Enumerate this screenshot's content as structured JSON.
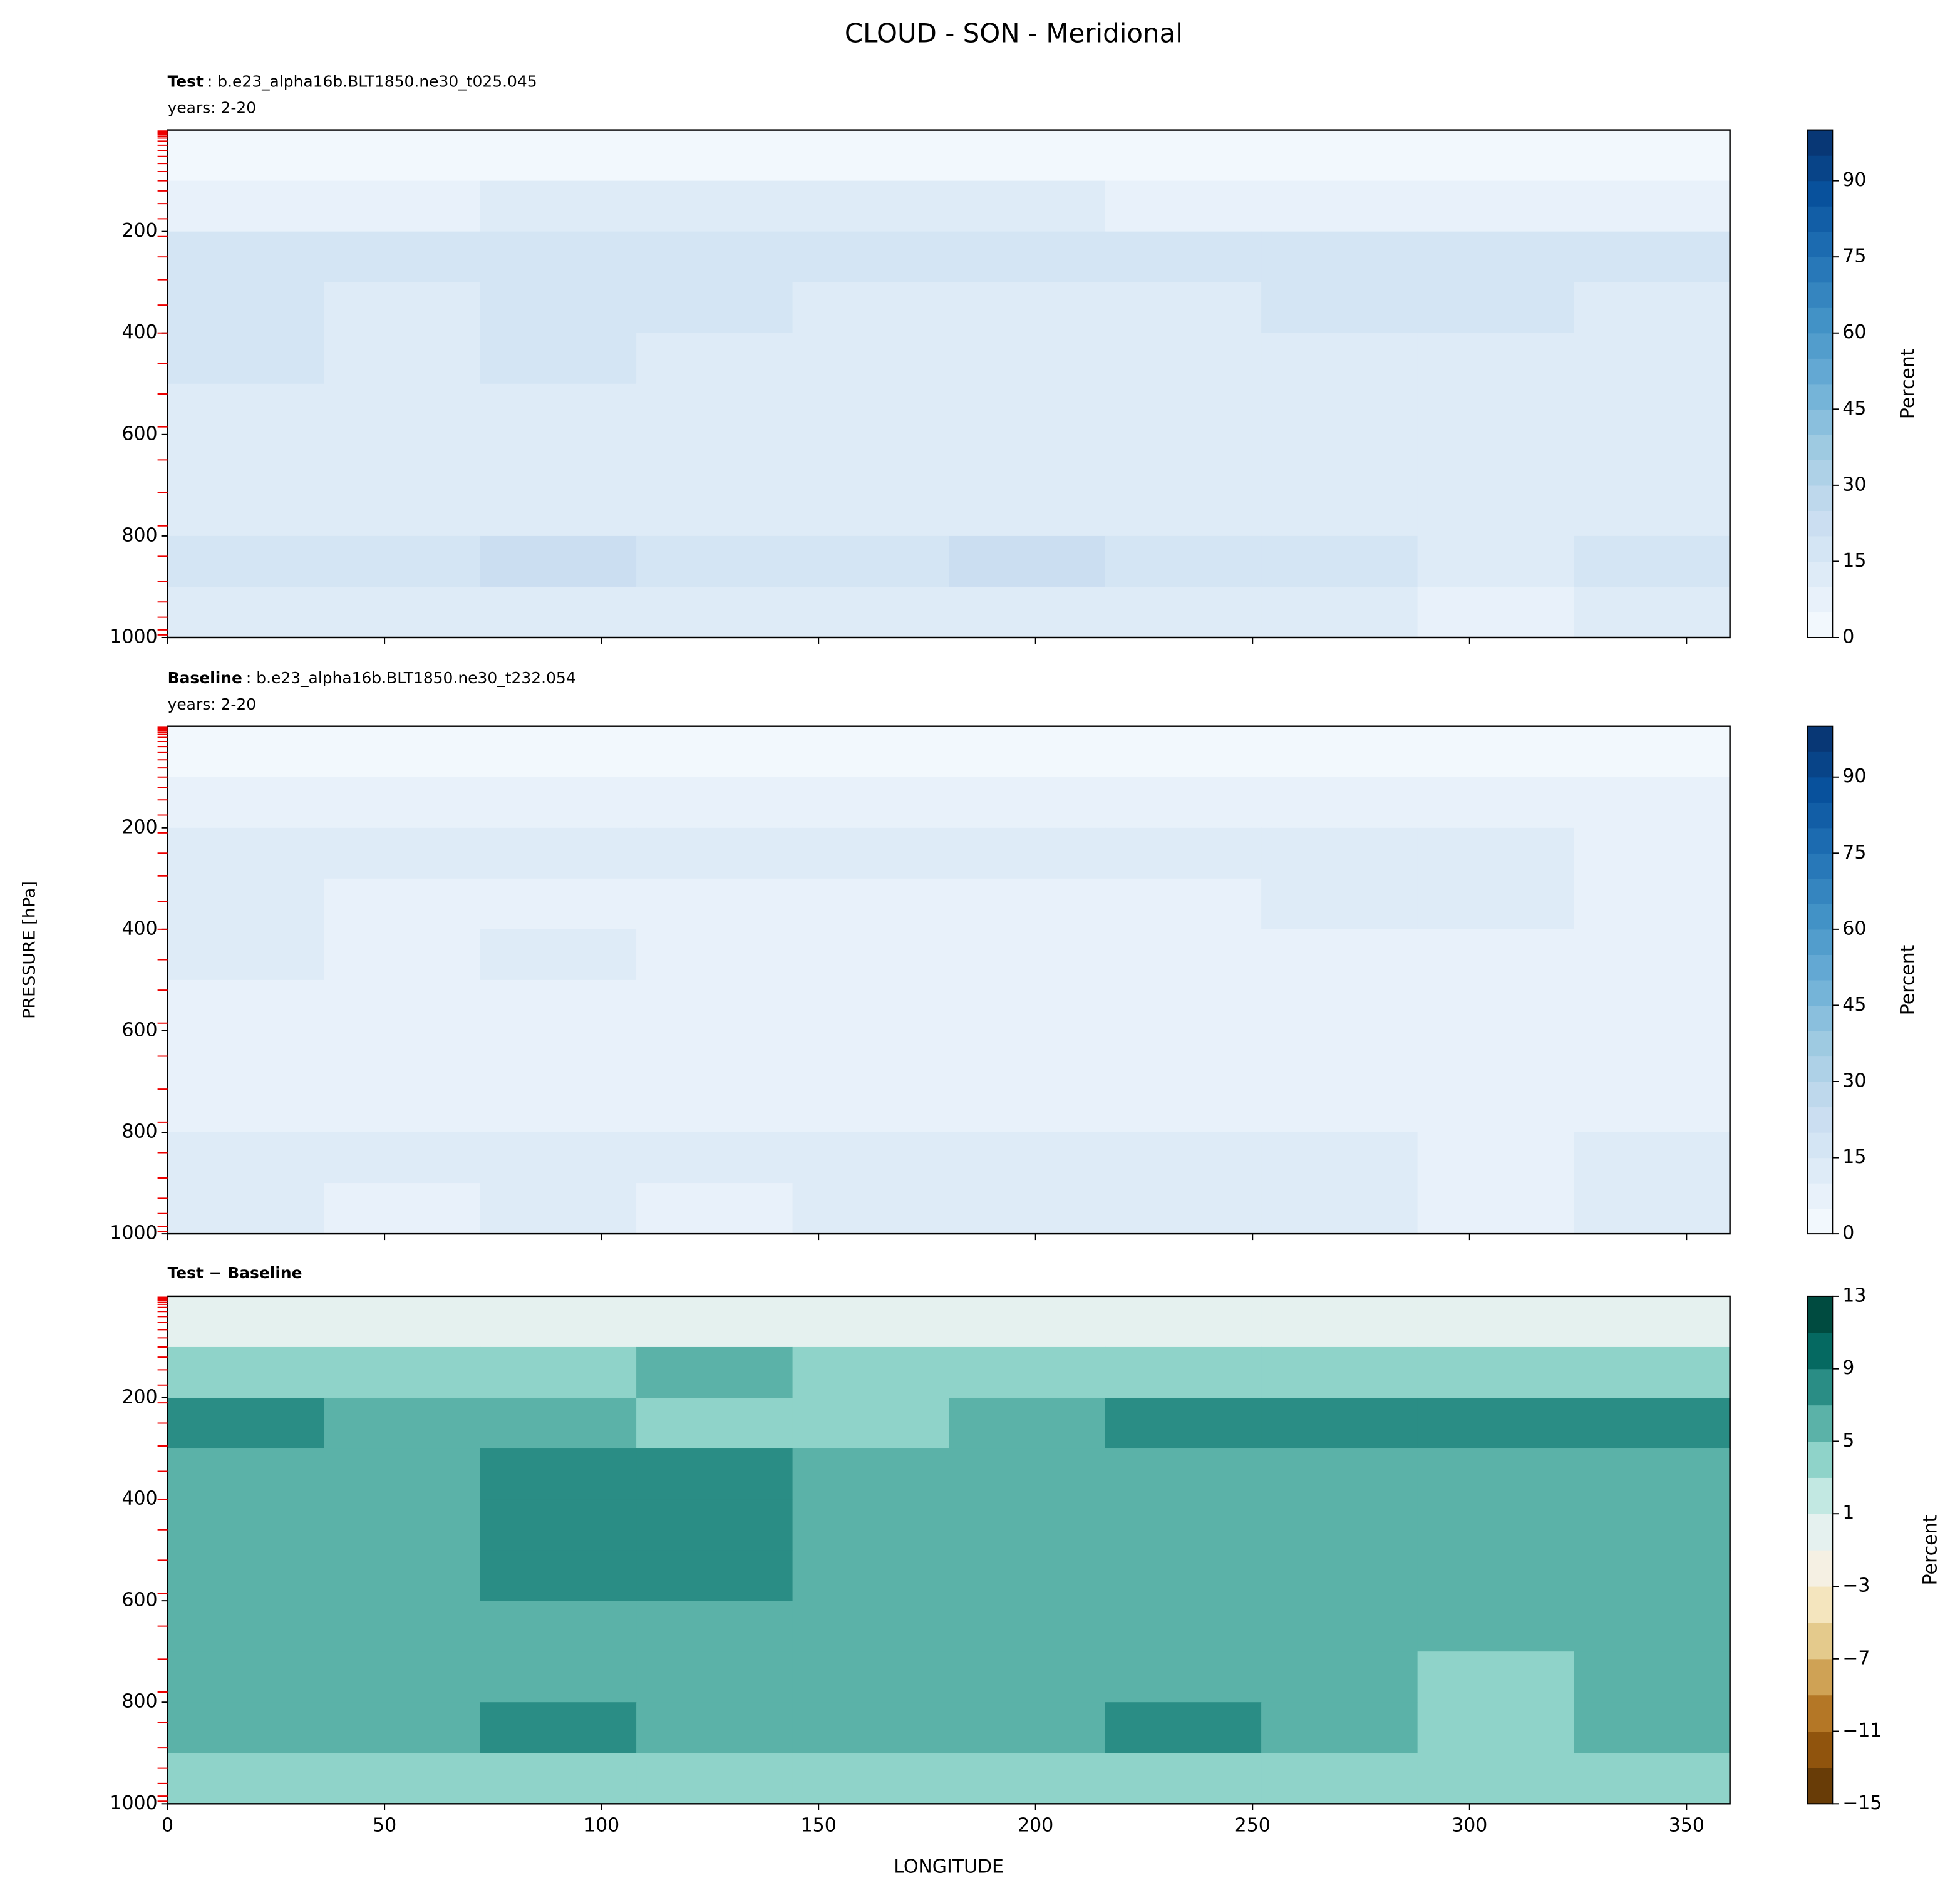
{
  "title": "CLOUD - SON - Meridional",
  "ylabel": "PRESSURE [hPa]",
  "chart_data": [
    {
      "type": "contour",
      "name": "Test",
      "case": ": b.e23_alpha16b.BLT1850.ne30_t025.045",
      "years": "years: 2-20",
      "x": [
        18,
        54,
        90,
        126,
        162,
        198,
        234,
        270,
        306,
        342
      ],
      "y": [
        50,
        150,
        250,
        350,
        450,
        550,
        650,
        750,
        850,
        950
      ],
      "z": [
        [
          2,
          2,
          2,
          2,
          2,
          2,
          2,
          2,
          2,
          2
        ],
        [
          8,
          9,
          10,
          10,
          10,
          10,
          9,
          9,
          8,
          8
        ],
        [
          17,
          16,
          17,
          15,
          17,
          15,
          17,
          18,
          17,
          16
        ],
        [
          15,
          13,
          16,
          15,
          14,
          14,
          14,
          15,
          15,
          14
        ],
        [
          15,
          12,
          17,
          14,
          14,
          14,
          13,
          14,
          13,
          12
        ],
        [
          14,
          12,
          13,
          14,
          14,
          13,
          12,
          13,
          11,
          11
        ],
        [
          11,
          13,
          12,
          11,
          10,
          10,
          10,
          11,
          10,
          10
        ],
        [
          12,
          13,
          14,
          13,
          13,
          13,
          14,
          13,
          11,
          13
        ],
        [
          18,
          17,
          20,
          18,
          19,
          20,
          19,
          18,
          12,
          18
        ],
        [
          14,
          12,
          14,
          12,
          13,
          13,
          14,
          13,
          9,
          14
        ]
      ],
      "xlim": [
        0,
        360
      ],
      "ylim": [
        1000,
        0
      ],
      "xticks": [
        0,
        50,
        100,
        150,
        200,
        250,
        300,
        350
      ],
      "yticks": [
        200,
        400,
        600,
        800,
        1000
      ],
      "levels": [
        0,
        5,
        10,
        15,
        20,
        25,
        30,
        35,
        40,
        45,
        50,
        55,
        60,
        65,
        70,
        75,
        80,
        85,
        90,
        95,
        100
      ],
      "colormap": [
        "#f7fbff",
        "#deebf7",
        "#c6dbef",
        "#9ecae1",
        "#6baed6",
        "#4292c6",
        "#2171b5",
        "#08519c",
        "#08306b"
      ],
      "colorbar_ticks": [
        0,
        15,
        30,
        45,
        60,
        75,
        90
      ],
      "colorbar_label": "Percent",
      "level_marks": [
        2,
        4,
        6,
        8,
        12,
        16,
        22,
        30,
        40,
        52,
        66,
        82,
        100,
        120,
        145,
        175,
        210,
        250,
        295,
        345,
        400,
        460,
        520,
        585,
        650,
        715,
        780,
        840,
        890,
        930,
        960,
        985,
        995
      ]
    },
    {
      "type": "contour",
      "name": "Baseline",
      "case": ": b.e23_alpha16b.BLT1850.ne30_t232.054",
      "years": "years: 2-20",
      "x": [
        18,
        54,
        90,
        126,
        162,
        198,
        234,
        270,
        306,
        342
      ],
      "y": [
        50,
        150,
        250,
        350,
        450,
        550,
        650,
        750,
        850,
        950
      ],
      "z": [
        [
          2,
          2,
          2,
          2,
          2,
          2,
          2,
          2,
          2,
          2
        ],
        [
          5,
          6,
          7,
          5,
          6,
          7,
          6,
          6,
          5,
          5
        ],
        [
          10,
          11,
          12,
          11,
          14,
          10,
          10,
          11,
          10,
          9
        ],
        [
          10,
          8,
          9,
          8,
          9,
          9,
          9,
          10,
          10,
          9
        ],
        [
          10,
          7,
          10,
          7,
          9,
          9,
          8,
          9,
          8,
          7
        ],
        [
          9,
          7,
          6,
          7,
          9,
          7,
          7,
          8,
          6,
          6
        ],
        [
          6,
          8,
          7,
          6,
          5,
          5,
          5,
          6,
          5,
          5
        ],
        [
          7,
          8,
          9,
          8,
          8,
          8,
          9,
          8,
          8,
          8
        ],
        [
          13,
          12,
          13,
          13,
          14,
          14,
          12,
          13,
          9,
          13
        ],
        [
          11,
          9,
          10,
          9,
          10,
          10,
          11,
          10,
          6,
          11
        ]
      ],
      "xlim": [
        0,
        360
      ],
      "ylim": [
        1000,
        0
      ],
      "xticks": [
        0,
        50,
        100,
        150,
        200,
        250,
        300,
        350
      ],
      "yticks": [
        200,
        400,
        600,
        800,
        1000
      ],
      "levels": [
        0,
        5,
        10,
        15,
        20,
        25,
        30,
        35,
        40,
        45,
        50,
        55,
        60,
        65,
        70,
        75,
        80,
        85,
        90,
        95,
        100
      ],
      "colormap": [
        "#f7fbff",
        "#deebf7",
        "#c6dbef",
        "#9ecae1",
        "#6baed6",
        "#4292c6",
        "#2171b5",
        "#08519c",
        "#08306b"
      ],
      "colorbar_ticks": [
        0,
        15,
        30,
        45,
        60,
        75,
        90
      ],
      "colorbar_label": "Percent",
      "level_marks": [
        2,
        4,
        6,
        8,
        12,
        16,
        22,
        30,
        40,
        52,
        66,
        82,
        100,
        120,
        145,
        175,
        210,
        250,
        295,
        345,
        400,
        460,
        520,
        585,
        650,
        715,
        780,
        840,
        890,
        930,
        960,
        985,
        995
      ]
    },
    {
      "type": "contour",
      "name": "Test − Baseline",
      "xlabel": "LONGITUDE",
      "x": [
        18,
        54,
        90,
        126,
        162,
        198,
        234,
        270,
        306,
        342
      ],
      "y": [
        50,
        150,
        250,
        350,
        450,
        550,
        650,
        750,
        850,
        950
      ],
      "z": [
        [
          0,
          0,
          0,
          0,
          0,
          0,
          0,
          0,
          0,
          0
        ],
        [
          3,
          3,
          3,
          5,
          4,
          3,
          3,
          3,
          3,
          3
        ],
        [
          7,
          5,
          5,
          4,
          3,
          5,
          7,
          7,
          7,
          7
        ],
        [
          5,
          5,
          7,
          7,
          5,
          5,
          5,
          5,
          5,
          5
        ],
        [
          5,
          5,
          7,
          7,
          5,
          5,
          5,
          5,
          5,
          5
        ],
        [
          5,
          5,
          7,
          7,
          5,
          6,
          5,
          5,
          5,
          5
        ],
        [
          5,
          5,
          5,
          5,
          5,
          5,
          5,
          5,
          5,
          5
        ],
        [
          5,
          5,
          5,
          5,
          5,
          5,
          5,
          5,
          3,
          5
        ],
        [
          5,
          5,
          7,
          5,
          5,
          6,
          7,
          5,
          3,
          5
        ],
        [
          3,
          3,
          4,
          3,
          3,
          3,
          3,
          3,
          3,
          3
        ]
      ],
      "xlim": [
        0,
        360
      ],
      "ylim": [
        1000,
        0
      ],
      "xticks": [
        0,
        50,
        100,
        150,
        200,
        250,
        300,
        350
      ],
      "yticks": [
        200,
        400,
        600,
        800,
        1000
      ],
      "levels": [
        -15,
        -13,
        -11,
        -9,
        -7,
        -5,
        -3,
        -1,
        1,
        3,
        5,
        7,
        9,
        11,
        13
      ],
      "colormap": [
        "#543005",
        "#8c510a",
        "#bf812d",
        "#dfc27d",
        "#f6e8c3",
        "#f5f5f5",
        "#c7eae5",
        "#80cdc1",
        "#35978f",
        "#01665e",
        "#003c30"
      ],
      "colorbar_ticks": [
        {
          "value": -15,
          "label": "−15"
        },
        {
          "value": -11,
          "label": "−11"
        },
        {
          "value": -7,
          "label": "−7"
        },
        {
          "value": -3,
          "label": "−3"
        },
        1,
        5,
        9,
        13
      ],
      "colorbar_label": "Percent",
      "level_marks": [
        2,
        4,
        6,
        8,
        12,
        16,
        22,
        30,
        40,
        52,
        66,
        82,
        100,
        120,
        145,
        175,
        210,
        250,
        295,
        345,
        400,
        460,
        520,
        585,
        650,
        715,
        780,
        840,
        890,
        930,
        960,
        985,
        995
      ]
    }
  ]
}
